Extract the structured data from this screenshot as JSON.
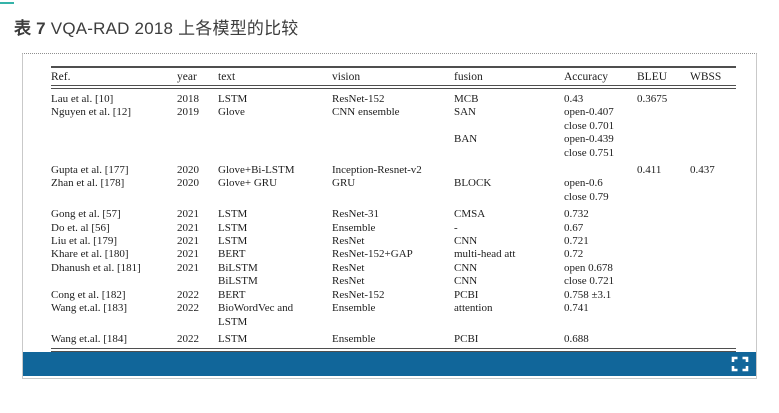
{
  "caption": {
    "prefix": "表 7",
    "text": "VQA-RAD 2018 上各模型的比较"
  },
  "colors": {
    "footer_bar": "#11669a",
    "accent_tick": "#35b3a9",
    "rule": "#4f4f4f",
    "icon": "#ffffff"
  },
  "viewer": {
    "fullscreen_icon": "expand"
  },
  "table": {
    "columns": [
      "Ref.",
      "year",
      "text",
      "vision",
      "fusion",
      "Accuracy",
      "BLEU",
      "WBSS"
    ],
    "rows": [
      {
        "gap": false,
        "cells": [
          "Lau et al. [10]",
          "2018",
          "LSTM",
          "ResNet-152",
          "MCB",
          "0.43",
          "0.3675",
          ""
        ]
      },
      {
        "gap": false,
        "cells": [
          "Nguyen et al. [12]",
          "2019",
          "Glove",
          "CNN ensemble",
          "SAN",
          "open-0.407",
          "",
          ""
        ]
      },
      {
        "gap": false,
        "cells": [
          "",
          "",
          "",
          "",
          "",
          "close 0.701",
          "",
          ""
        ]
      },
      {
        "gap": false,
        "cells": [
          "",
          "",
          "",
          "",
          "BAN",
          "open-0.439",
          "",
          ""
        ]
      },
      {
        "gap": false,
        "cells": [
          "",
          "",
          "",
          "",
          "",
          "close 0.751",
          "",
          ""
        ]
      },
      {
        "gap": true,
        "cells": [
          "Gupta et al. [177]",
          "2020",
          "Glove+Bi-LSTM",
          "Inception-Resnet-v2",
          "",
          "",
          "0.411",
          "0.437"
        ]
      },
      {
        "gap": false,
        "cells": [
          "Zhan et al. [178]",
          "2020",
          "Glove+ GRU",
          "GRU",
          "BLOCK",
          "open-0.6",
          "",
          ""
        ]
      },
      {
        "gap": false,
        "cells": [
          "",
          "",
          "",
          "",
          "",
          "close 0.79",
          "",
          ""
        ]
      },
      {
        "gap": true,
        "cells": [
          "Gong et al. [57]",
          "2021",
          "LSTM",
          "ResNet-31",
          "CMSA",
          "0.732",
          "",
          ""
        ]
      },
      {
        "gap": false,
        "cells": [
          "Do et. al [56]",
          "2021",
          "LSTM",
          "Ensemble",
          "-",
          "0.67",
          "",
          ""
        ]
      },
      {
        "gap": false,
        "cells": [
          "Liu et al. [179]",
          "2021",
          "LSTM",
          "ResNet",
          "CNN",
          "0.721",
          "",
          ""
        ]
      },
      {
        "gap": false,
        "cells": [
          "Khare et al. [180]",
          "2021",
          "BERT",
          "ResNet-152+GAP",
          "multi-head att",
          "0.72",
          "",
          ""
        ]
      },
      {
        "gap": false,
        "cells": [
          "Dhanush et al. [181]",
          "2021",
          "BiLSTM",
          "ResNet",
          "CNN",
          "open 0.678",
          "",
          ""
        ]
      },
      {
        "gap": false,
        "cells": [
          "",
          "",
          "BiLSTM",
          "ResNet",
          "CNN",
          "close 0.721",
          "",
          ""
        ]
      },
      {
        "gap": false,
        "cells": [
          "Cong et al. [182]",
          "2022",
          "BERT",
          "ResNet-152",
          "PCBI",
          "0.758 ±3.1",
          "",
          ""
        ]
      },
      {
        "gap": false,
        "cells": [
          "Wang et.al. [183]",
          "2022",
          "BioWordVec and",
          "Ensemble",
          "attention",
          "0.741",
          "",
          ""
        ]
      },
      {
        "gap": false,
        "cells": [
          "",
          "",
          "LSTM",
          "",
          "",
          "",
          "",
          ""
        ]
      },
      {
        "gap": true,
        "cells": [
          "Wang et.al. [184]",
          "2022",
          "LSTM",
          "Ensemble",
          "PCBI",
          "0.688",
          "",
          ""
        ]
      }
    ]
  }
}
